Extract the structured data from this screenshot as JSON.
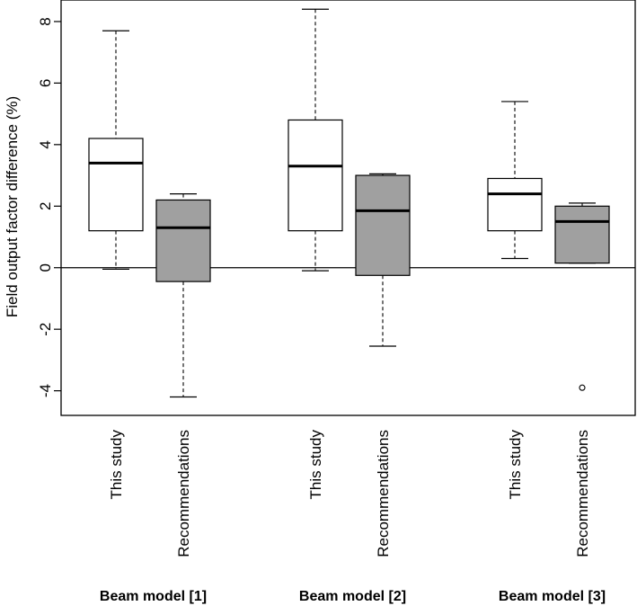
{
  "chart_data": {
    "type": "boxplot",
    "ylabel": "Field output factor difference (%)",
    "ylim": [
      -4.8,
      8.7
    ],
    "yticks": [
      -4,
      -2,
      0,
      2,
      4,
      6,
      8
    ],
    "ytick_labels": [
      "-4",
      "-2",
      "0",
      "2",
      "4",
      "6",
      "8"
    ],
    "reference_line": 0,
    "colors": {
      "this_study": "#ffffff",
      "recommendations": "#a0a0a0",
      "stroke": "#000000"
    },
    "groups": [
      {
        "label": "Beam model [1]",
        "boxes": [
          {
            "name": "This study",
            "fill": "this_study",
            "whisker_low": -0.05,
            "q1": 1.2,
            "median": 3.4,
            "q3": 4.2,
            "whisker_high": 7.7,
            "outliers": []
          },
          {
            "name": "Recommendations",
            "fill": "recommendations",
            "whisker_low": -4.2,
            "q1": -0.45,
            "median": 1.3,
            "q3": 2.2,
            "whisker_high": 2.4,
            "outliers": []
          }
        ]
      },
      {
        "label": "Beam model [2]",
        "boxes": [
          {
            "name": "This study",
            "fill": "this_study",
            "whisker_low": -0.1,
            "q1": 1.2,
            "median": 3.3,
            "q3": 4.8,
            "whisker_high": 8.4,
            "outliers": []
          },
          {
            "name": "Recommendations",
            "fill": "recommendations",
            "whisker_low": -2.55,
            "q1": -0.25,
            "median": 1.85,
            "q3": 3.0,
            "whisker_high": 3.05,
            "outliers": []
          }
        ]
      },
      {
        "label": "Beam model [3]",
        "boxes": [
          {
            "name": "This study",
            "fill": "this_study",
            "whisker_low": 0.3,
            "q1": 1.2,
            "median": 2.4,
            "q3": 2.9,
            "whisker_high": 5.4,
            "outliers": []
          },
          {
            "name": "Recommendations",
            "fill": "recommendations",
            "whisker_low": 0.15,
            "q1": 0.15,
            "median": 1.5,
            "q3": 2.0,
            "whisker_high": 2.1,
            "outliers": [
              -3.9
            ]
          }
        ]
      }
    ]
  }
}
